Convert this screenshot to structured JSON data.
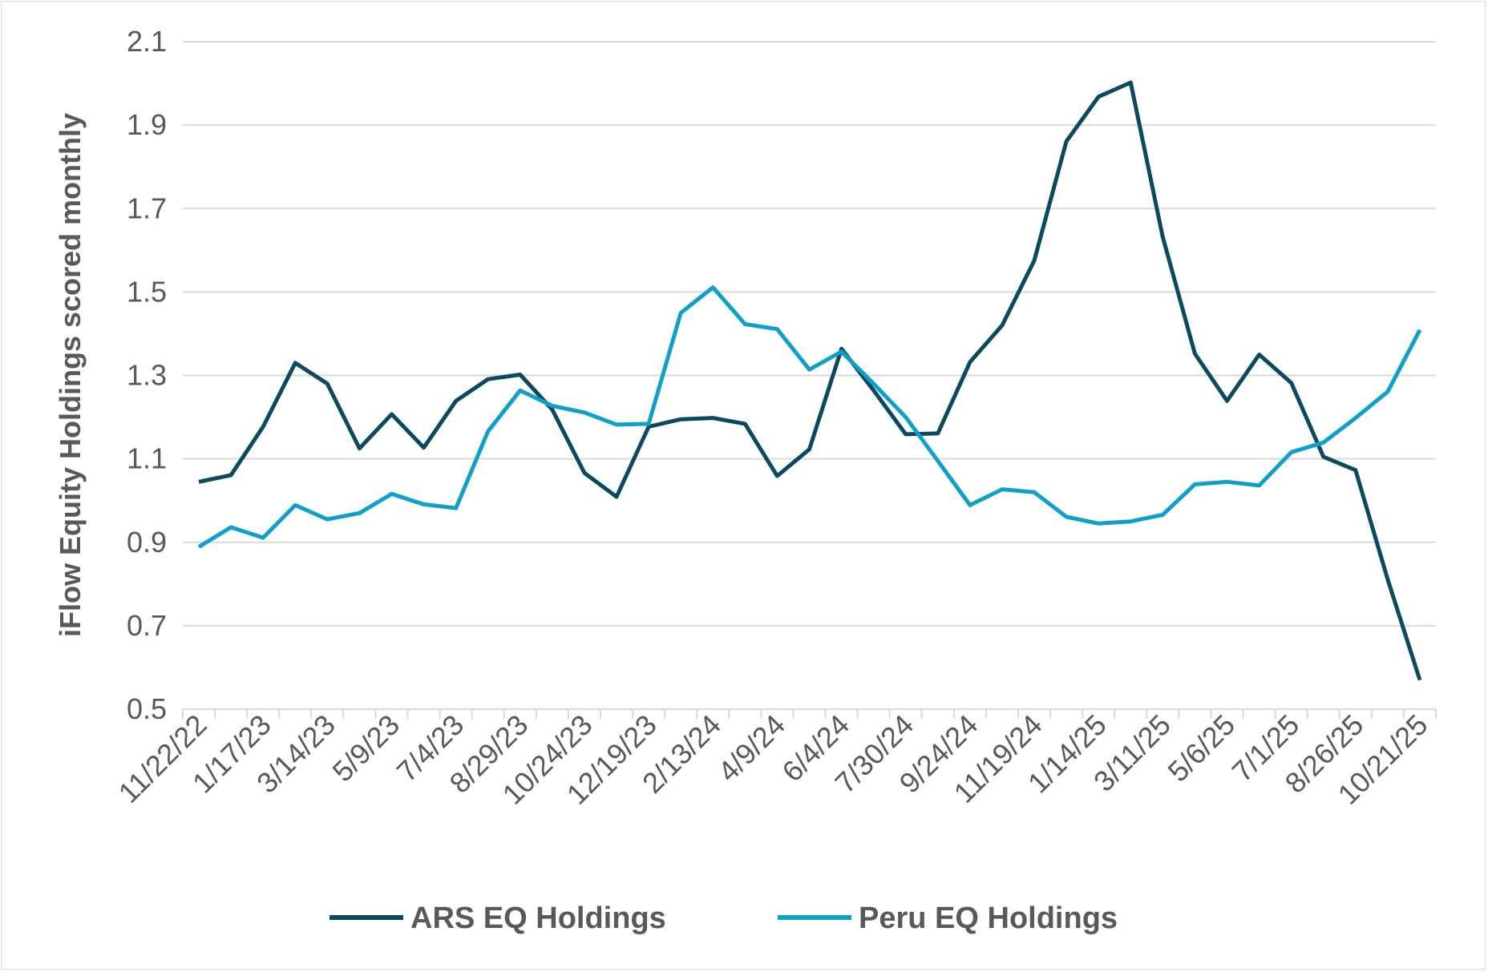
{
  "chart_data": {
    "type": "line",
    "title": "",
    "xlabel": "",
    "ylabel": "iFlow Equity Holdings scored monthly",
    "ylim": [
      0.5,
      2.1
    ],
    "yticks": [
      "0.5",
      "0.7",
      "0.9",
      "1.1",
      "1.3",
      "1.5",
      "1.7",
      "1.9",
      "2.1"
    ],
    "grid": true,
    "legend": "bottom",
    "x_tick_labels": [
      "11/22/22",
      "1/17/23",
      "3/14/23",
      "5/9/23",
      "7/4/23",
      "8/29/23",
      "10/24/23",
      "12/19/23",
      "2/13/24",
      "4/9/24",
      "6/4/24",
      "7/30/24",
      "9/24/24",
      "11/19/24",
      "1/14/25",
      "3/11/25",
      "5/6/25",
      "7/1/25",
      "8/26/25",
      "10/21/25"
    ],
    "x": [
      "11/22/22",
      "12/20/22",
      "1/17/23",
      "2/14/23",
      "3/14/23",
      "4/11/23",
      "5/9/23",
      "6/6/23",
      "7/4/23",
      "8/1/23",
      "8/29/23",
      "9/26/23",
      "10/24/23",
      "11/21/23",
      "12/19/23",
      "1/16/24",
      "2/13/24",
      "3/12/24",
      "4/9/24",
      "5/7/24",
      "6/4/24",
      "7/2/24",
      "7/30/24",
      "8/27/24",
      "9/24/24",
      "10/22/24",
      "11/19/24",
      "12/17/24",
      "1/14/25",
      "2/11/25",
      "3/11/25",
      "4/8/25",
      "5/6/25",
      "6/3/25",
      "7/1/25",
      "7/29/25",
      "8/26/25",
      "9/23/25",
      "10/21/25"
    ],
    "series": [
      {
        "name": "ARS EQ Holdings",
        "color": "#0b4a5e",
        "values": [
          1.045,
          1.061,
          1.177,
          1.33,
          1.28,
          1.125,
          1.207,
          1.127,
          1.239,
          1.291,
          1.302,
          1.218,
          1.066,
          1.009,
          1.177,
          1.195,
          1.198,
          1.184,
          1.059,
          1.123,
          1.364,
          1.264,
          1.159,
          1.161,
          1.332,
          1.42,
          1.575,
          1.861,
          1.968,
          2.002,
          1.632,
          1.352,
          1.239,
          1.35,
          1.282,
          1.105,
          1.073,
          0.811,
          0.57
        ]
      },
      {
        "name": "Peru EQ Holdings",
        "color": "#0fa0c9",
        "values": [
          0.889,
          0.936,
          0.911,
          0.989,
          0.955,
          0.97,
          1.016,
          0.991,
          0.982,
          1.166,
          1.264,
          1.227,
          1.211,
          1.182,
          1.184,
          1.45,
          1.511,
          1.423,
          1.411,
          1.314,
          1.357,
          1.28,
          1.2,
          1.095,
          0.989,
          1.027,
          1.02,
          0.961,
          0.945,
          0.95,
          0.966,
          1.039,
          1.045,
          1.036,
          1.116,
          1.139,
          1.198,
          1.261,
          1.409
        ]
      }
    ]
  }
}
